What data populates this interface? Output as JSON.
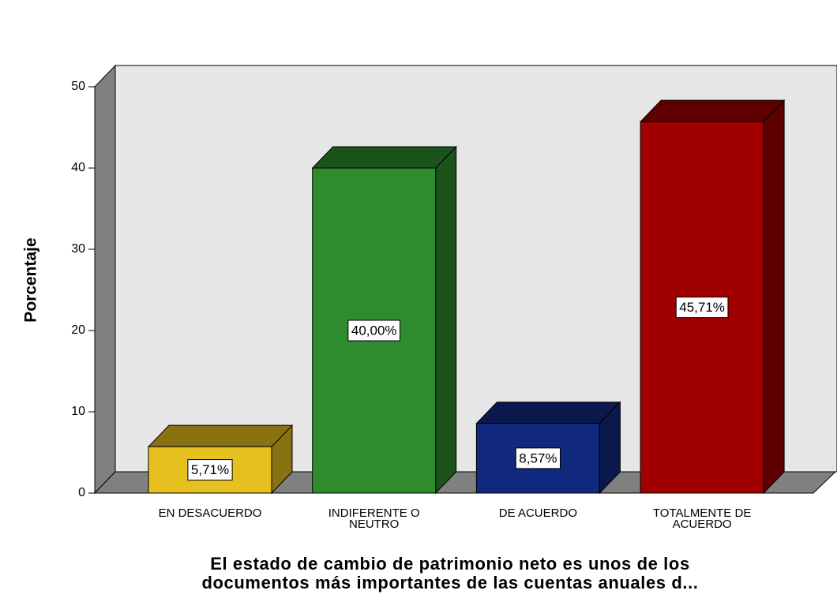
{
  "chart_data": {
    "type": "bar3d",
    "y_label": "Porcentaje",
    "x_label": "El estado de cambio de patrimonio neto es unos de los documentos más importantes de las cuentas anuales d...",
    "categories": [
      "EN DESACUERDO",
      "INDIFERENTE O NEUTRO",
      "DE ACUERDO",
      "TOTALMENTE DE ACUERDO"
    ],
    "values": [
      5.71,
      40.0,
      8.57,
      45.71
    ],
    "value_labels": [
      "5,71%",
      "40,00%",
      "8,57%",
      "45,71%"
    ],
    "colors": [
      "#e6c01f",
      "#2e8b2e",
      "#10287e",
      "#a00000"
    ],
    "side_colors": [
      "#8a7212",
      "#1b531b",
      "#0a184c",
      "#5e0000"
    ],
    "ylim": [
      0,
      50
    ],
    "yticks": [
      0,
      10,
      20,
      30,
      40,
      50
    ],
    "grid": false
  }
}
